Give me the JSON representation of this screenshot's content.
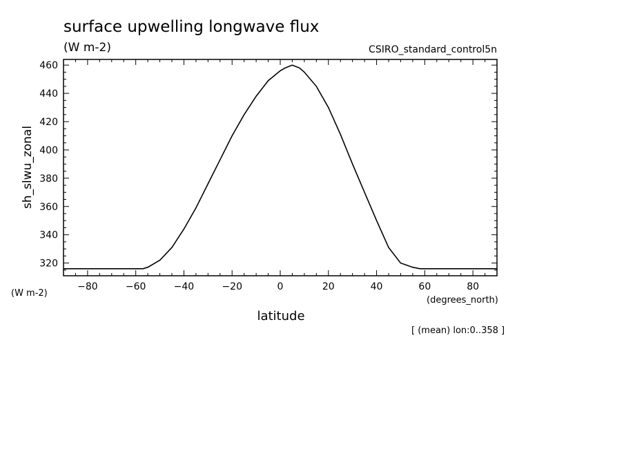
{
  "chart_data": {
    "type": "line",
    "title": "surface upwelling longwave flux",
    "units_label": "(W m-2)",
    "model_label": "CSIRO_standard_control5n",
    "ylabel": "sh_slwu_zonal",
    "yaxis_units": "(W m-2)",
    "xlabel": "latitude",
    "xaxis_units": "(degrees_north)",
    "footnote": "[ (mean) lon:0..358 ]",
    "xlim": [
      -90,
      90
    ],
    "ylim": [
      311,
      464
    ],
    "x_ticks": [
      -80,
      -60,
      -40,
      -20,
      0,
      20,
      40,
      60,
      80
    ],
    "y_ticks": [
      320,
      340,
      360,
      380,
      400,
      420,
      440,
      460
    ],
    "series": [
      {
        "x": [
          -90,
          -80,
          -70,
          -60,
          -57,
          -55,
          -50,
          -45,
          -40,
          -35,
          -30,
          -25,
          -20,
          -15,
          -10,
          -5,
          0,
          2,
          5,
          8,
          10,
          15,
          20,
          25,
          30,
          35,
          40,
          45,
          50,
          55,
          58,
          60,
          70,
          80,
          90
        ],
        "y": [
          316,
          316,
          316,
          316,
          316,
          317,
          322,
          331,
          344,
          359,
          376,
          393,
          410,
          425,
          438,
          449,
          456,
          458,
          460,
          458,
          455,
          445,
          430,
          411,
          390,
          370,
          350,
          331,
          320,
          317,
          316,
          316,
          316,
          316,
          316
        ]
      }
    ]
  }
}
